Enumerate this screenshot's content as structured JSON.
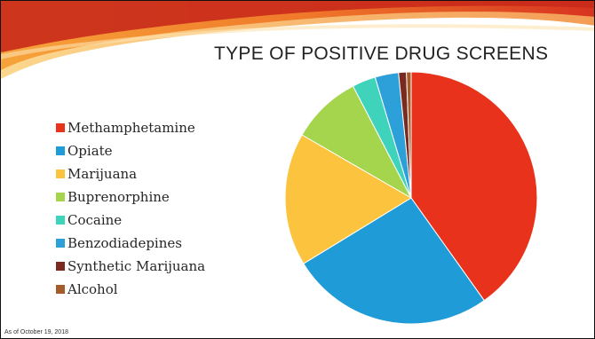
{
  "slide": {
    "title": "TYPE OF POSITIVE DRUG SCREENS",
    "footnote": "As of October 19, 2018"
  },
  "chart_data": {
    "type": "pie",
    "title": "TYPE OF POSITIVE DRUG SCREENS",
    "legend_position": "left",
    "start_angle_deg": 0,
    "direction": "clockwise",
    "categories": [
      "Methamphetamine",
      "Opiate",
      "Marijuana",
      "Buprenorphine",
      "Cocaine",
      "Benzodiadepines",
      "Synthetic Marijuana",
      "Alcohol"
    ],
    "values": [
      40,
      26,
      17,
      9,
      3,
      3,
      1,
      0.6
    ],
    "colors": [
      "#e8321c",
      "#1f9bd8",
      "#fcc43e",
      "#a5d54c",
      "#3fd3bc",
      "#2d9fd9",
      "#7a2a1f",
      "#a35c2a"
    ]
  }
}
